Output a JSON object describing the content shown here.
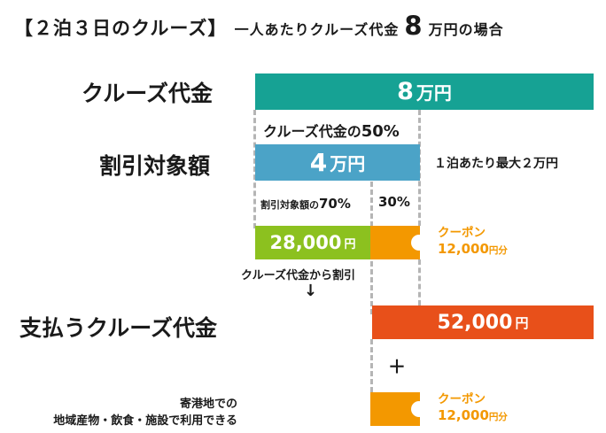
{
  "title": {
    "main": "【２泊３日のクルーズ】",
    "prefix": "一人あたりクルーズ代金",
    "amount": "8",
    "suffix": "万円の場合"
  },
  "rows": {
    "cruise_fee": {
      "label": "クルーズ代金",
      "bar_value": "8",
      "bar_unit": "万円"
    },
    "discount_base": {
      "label": "割引対象額",
      "bar_value": "4",
      "bar_unit": "万円",
      "note": "１泊あたり最大２万円"
    },
    "pay": {
      "label": "支払うクルーズ代金",
      "bar_value": "52,000",
      "bar_unit": "円"
    }
  },
  "annotations": {
    "half": "クルーズ代金の",
    "half_pct": "50%",
    "seventy_prefix": "割引対象額の",
    "seventy_pct": "70%",
    "thirty_pct": "30%",
    "discount_from_fee": "クルーズ代金から割引",
    "arrow": "↓",
    "plus": "＋",
    "local_use_line1": "寄港地での",
    "local_use_line2": "地域産物・飲食・施設で利用できる"
  },
  "split": {
    "discount_value": "28,000",
    "discount_unit": "円"
  },
  "coupon1": {
    "label": "クーポン",
    "amount": "12,000",
    "unit": "円分"
  },
  "coupon2": {
    "label": "クーポン",
    "amount": "12,000",
    "unit": "円分"
  },
  "colors": {
    "teal": "#16a294",
    "blue": "#4ba3c7",
    "green": "#8cc11f",
    "orange": "#f39800",
    "red_orange": "#e8501a",
    "dash": "#b5b5b5"
  }
}
